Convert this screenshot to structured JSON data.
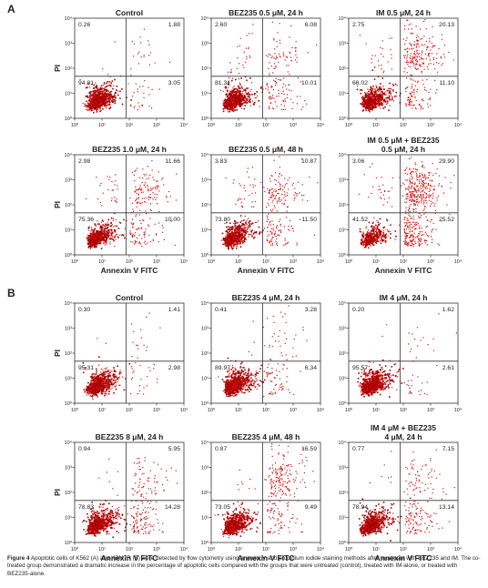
{
  "panel_labels": [
    "A",
    "B"
  ],
  "caption": {
    "label": "Figure 4",
    "text": "Apoptotic cells of K562 (A) and KBM7R (B) were detected by flow cytometry using annexin V and propidium iodide staining methods after treatment with BEZ235 and IM. The co-treated group demonstrated a dramatic increase in the percentage of apoptotic cells compared with the groups that were untreated (control), treated with IM-alone, or treated with BEZ235-alone."
  },
  "colors": {
    "dots": "#d41414",
    "dense": "#a80000",
    "axis": "#333333",
    "text": "#222222"
  },
  "chart_data": [
    {
      "panel": "A",
      "type": "scatter",
      "title": [
        "Control"
      ],
      "quadrants": {
        "ul": "0.26",
        "ur": "1.88",
        "ll": "94.81",
        "lr": "3.05"
      },
      "xlabel": "",
      "ylabel": "PI",
      "x_ticks": [
        "10⁰",
        "10¹",
        "10²",
        "10³",
        "10⁴"
      ],
      "y_ticks": [
        "10⁰",
        "10¹",
        "10²",
        "10³",
        "10⁴"
      ],
      "x_range": [
        0,
        4
      ],
      "y_range": [
        0,
        4
      ],
      "log_scale": true
    },
    {
      "panel": "A",
      "type": "scatter",
      "title": [
        "BEZ235 0.5 μM, 24 h"
      ],
      "quadrants": {
        "ul": "2.60",
        "ur": "6.08",
        "ll": "81.31",
        "lr": "10.01"
      },
      "xlabel": "",
      "ylabel": "",
      "x_ticks": [
        "10⁰",
        "10¹",
        "10²",
        "10³",
        "10⁴"
      ],
      "y_ticks": [
        "10⁰",
        "10¹",
        "10²",
        "10³",
        "10⁴"
      ],
      "x_range": [
        0,
        4
      ],
      "y_range": [
        0,
        4
      ],
      "log_scale": true
    },
    {
      "panel": "A",
      "type": "scatter",
      "title": [
        "IM 0.5 μM, 24 h"
      ],
      "quadrants": {
        "ul": "2.75",
        "ur": "20.13",
        "ll": "66.02",
        "lr": "11.10"
      },
      "xlabel": "",
      "ylabel": "",
      "x_ticks": [
        "10⁰",
        "10¹",
        "10²",
        "10³",
        "10⁴"
      ],
      "y_ticks": [
        "10⁰",
        "10¹",
        "10²",
        "10³",
        "10⁴"
      ],
      "x_range": [
        0,
        4
      ],
      "y_range": [
        0,
        4
      ],
      "log_scale": true
    },
    {
      "panel": "A",
      "type": "scatter",
      "title": [
        "BEZ235 1.0 μM, 24 h"
      ],
      "quadrants": {
        "ul": "2.98",
        "ur": "11.66",
        "ll": "75.36",
        "lr": "10.00"
      },
      "xlabel": "Annexin V FITC",
      "ylabel": "PI",
      "x_ticks": [
        "10⁰",
        "10¹",
        "10²",
        "10³",
        "10⁴"
      ],
      "y_ticks": [
        "10⁰",
        "10¹",
        "10²",
        "10³",
        "10⁴"
      ],
      "x_range": [
        0,
        4
      ],
      "y_range": [
        0,
        4
      ],
      "log_scale": true
    },
    {
      "panel": "A",
      "type": "scatter",
      "title": [
        "BEZ235 0.5 μM, 48 h"
      ],
      "quadrants": {
        "ul": "3.83",
        "ur": "10.87",
        "ll": "73.80",
        "lr": "11.50"
      },
      "xlabel": "Annexin V FITC",
      "ylabel": "",
      "x_ticks": [
        "10⁰",
        "10¹",
        "10²",
        "10³",
        "10⁴"
      ],
      "y_ticks": [
        "10⁰",
        "10¹",
        "10²",
        "10³",
        "10⁴"
      ],
      "x_range": [
        0,
        4
      ],
      "y_range": [
        0,
        4
      ],
      "log_scale": true
    },
    {
      "panel": "A",
      "type": "scatter",
      "title": [
        "IM 0.5 μM + BEZ235",
        "0.5 μM, 24 h"
      ],
      "quadrants": {
        "ul": "3.06",
        "ur": "29.90",
        "ll": "41.52",
        "lr": "25.52"
      },
      "xlabel": "Annexin V FITC",
      "ylabel": "",
      "x_ticks": [
        "10⁰",
        "10¹",
        "10²",
        "10³",
        "10⁴"
      ],
      "y_ticks": [
        "10⁰",
        "10¹",
        "10²",
        "10³",
        "10⁴"
      ],
      "x_range": [
        0,
        4
      ],
      "y_range": [
        0,
        4
      ],
      "log_scale": true
    },
    {
      "panel": "B",
      "type": "scatter",
      "title": [
        "Control"
      ],
      "quadrants": {
        "ul": "0.30",
        "ur": "1.41",
        "ll": "95.31",
        "lr": "2.98"
      },
      "xlabel": "",
      "ylabel": "PI",
      "x_ticks": [
        "10⁰",
        "10¹",
        "10²",
        "10³",
        "10⁴"
      ],
      "y_ticks": [
        "10⁰",
        "10¹",
        "10²",
        "10³",
        "10⁴"
      ],
      "x_range": [
        0,
        4
      ],
      "y_range": [
        0,
        4
      ],
      "log_scale": true
    },
    {
      "panel": "B",
      "type": "scatter",
      "title": [
        "BEZ235 4 μM, 24 h"
      ],
      "quadrants": {
        "ul": "0.41",
        "ur": "3.28",
        "ll": "89.97",
        "lr": "6.34"
      },
      "xlabel": "",
      "ylabel": "",
      "x_ticks": [
        "10⁰",
        "10¹",
        "10²",
        "10³",
        "10⁴"
      ],
      "y_ticks": [
        "10⁰",
        "10¹",
        "10²",
        "10³",
        "10⁴"
      ],
      "x_range": [
        0,
        4
      ],
      "y_range": [
        0,
        4
      ],
      "log_scale": true
    },
    {
      "panel": "B",
      "type": "scatter",
      "title": [
        "IM 4 μM, 24 h"
      ],
      "quadrants": {
        "ul": "0.20",
        "ur": "1.62",
        "ll": "95.57",
        "lr": "2.61"
      },
      "xlabel": "",
      "ylabel": "",
      "x_ticks": [
        "10⁰",
        "10¹",
        "10²",
        "10³",
        "10⁴"
      ],
      "y_ticks": [
        "10⁰",
        "10¹",
        "10²",
        "10³",
        "10⁴"
      ],
      "x_range": [
        0,
        4
      ],
      "y_range": [
        0,
        4
      ],
      "log_scale": true
    },
    {
      "panel": "B",
      "type": "scatter",
      "title": [
        "BEZ235 8 μM, 24 h"
      ],
      "quadrants": {
        "ul": "0.94",
        "ur": "5.95",
        "ll": "78.83",
        "lr": "14.28"
      },
      "xlabel": "Annexin V FITC",
      "ylabel": "PI",
      "x_ticks": [
        "10⁰",
        "10¹",
        "10²",
        "10³",
        "10⁴"
      ],
      "y_ticks": [
        "10⁰",
        "10¹",
        "10²",
        "10³",
        "10⁴"
      ],
      "x_range": [
        0,
        4
      ],
      "y_range": [
        0,
        4
      ],
      "log_scale": true
    },
    {
      "panel": "B",
      "type": "scatter",
      "title": [
        "BEZ235 4 μM, 48 h"
      ],
      "quadrants": {
        "ul": "0.87",
        "ur": "16.59",
        "ll": "73.05",
        "lr": "9.49"
      },
      "xlabel": "Annexin V FITC",
      "ylabel": "",
      "x_ticks": [
        "10⁰",
        "10¹",
        "10²",
        "10³",
        "10⁴"
      ],
      "y_ticks": [
        "10⁰",
        "10¹",
        "10²",
        "10³",
        "10⁴"
      ],
      "x_range": [
        0,
        4
      ],
      "y_range": [
        0,
        4
      ],
      "log_scale": true
    },
    {
      "panel": "B",
      "type": "scatter",
      "title": [
        "IM 4 μM + BEZ235",
        "4 μM, 24 h"
      ],
      "quadrants": {
        "ul": "0.77",
        "ur": "7.15",
        "ll": "78.94",
        "lr": "13.14"
      },
      "xlabel": "Annexin V FITC",
      "ylabel": "",
      "x_ticks": [
        "10⁰",
        "10¹",
        "10²",
        "10³",
        "10⁴"
      ],
      "y_ticks": [
        "10⁰",
        "10¹",
        "10²",
        "10³",
        "10⁴"
      ],
      "x_range": [
        0,
        4
      ],
      "y_range": [
        0,
        4
      ],
      "log_scale": true
    }
  ]
}
